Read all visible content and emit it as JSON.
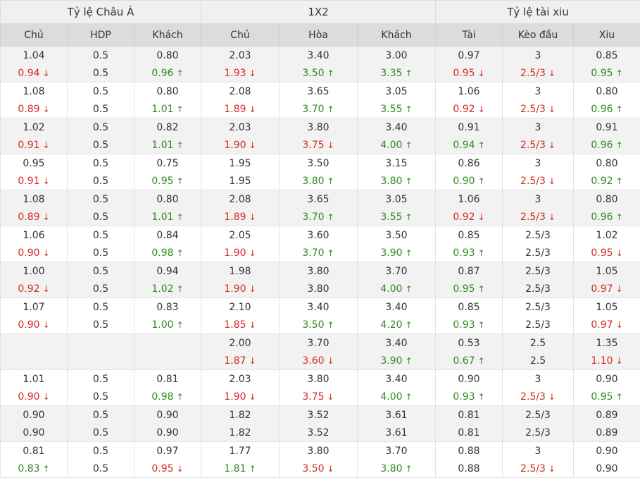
{
  "groups": [
    "Tỷ lệ Châu Á",
    "1X2",
    "Tỷ lệ tài xiu"
  ],
  "columns": [
    "Chủ",
    "HDP",
    "Khách",
    "Chủ",
    "Hòa",
    "Khách",
    "Tài",
    "Kèo đầu",
    "Xiu"
  ],
  "colors": {
    "down": "#d42a1e",
    "up": "#2e8b1e"
  },
  "icons": {
    "up": "arrow-up-icon",
    "down": "arrow-down-icon"
  },
  "rows": [
    [
      [
        "1.04",
        "0.94",
        "d"
      ],
      [
        "0.5",
        "0.5",
        ""
      ],
      [
        "0.80",
        "0.96",
        "u"
      ],
      [
        "2.03",
        "1.93",
        "d"
      ],
      [
        "3.40",
        "3.50",
        "u"
      ],
      [
        "3.00",
        "3.35",
        "u"
      ],
      [
        "0.97",
        "0.95",
        "d"
      ],
      [
        "3",
        "2.5/3",
        "d"
      ],
      [
        "0.85",
        "0.95",
        "u"
      ]
    ],
    [
      [
        "1.08",
        "0.89",
        "d"
      ],
      [
        "0.5",
        "0.5",
        ""
      ],
      [
        "0.80",
        "1.01",
        "u"
      ],
      [
        "2.08",
        "1.89",
        "d"
      ],
      [
        "3.65",
        "3.70",
        "u"
      ],
      [
        "3.05",
        "3.55",
        "u"
      ],
      [
        "1.06",
        "0.92",
        "d"
      ],
      [
        "3",
        "2.5/3",
        "d"
      ],
      [
        "0.80",
        "0.96",
        "u"
      ]
    ],
    [
      [
        "1.02",
        "0.91",
        "d"
      ],
      [
        "0.5",
        "0.5",
        ""
      ],
      [
        "0.82",
        "1.01",
        "u"
      ],
      [
        "2.03",
        "1.90",
        "d"
      ],
      [
        "3.80",
        "3.75",
        "d"
      ],
      [
        "3.40",
        "4.00",
        "u"
      ],
      [
        "0.91",
        "0.94",
        "u"
      ],
      [
        "3",
        "2.5/3",
        "d"
      ],
      [
        "0.91",
        "0.96",
        "u"
      ]
    ],
    [
      [
        "0.95",
        "0.91",
        "d"
      ],
      [
        "0.5",
        "0.5",
        ""
      ],
      [
        "0.75",
        "0.95",
        "u"
      ],
      [
        "1.95",
        "1.95",
        ""
      ],
      [
        "3.50",
        "3.80",
        "u"
      ],
      [
        "3.15",
        "3.80",
        "u"
      ],
      [
        "0.86",
        "0.90",
        "u"
      ],
      [
        "3",
        "2.5/3",
        "d"
      ],
      [
        "0.80",
        "0.92",
        "u"
      ]
    ],
    [
      [
        "1.08",
        "0.89",
        "d"
      ],
      [
        "0.5",
        "0.5",
        ""
      ],
      [
        "0.80",
        "1.01",
        "u"
      ],
      [
        "2.08",
        "1.89",
        "d"
      ],
      [
        "3.65",
        "3.70",
        "u"
      ],
      [
        "3.05",
        "3.55",
        "u"
      ],
      [
        "1.06",
        "0.92",
        "d"
      ],
      [
        "3",
        "2.5/3",
        "d"
      ],
      [
        "0.80",
        "0.96",
        "u"
      ]
    ],
    [
      [
        "1.06",
        "0.90",
        "d"
      ],
      [
        "0.5",
        "0.5",
        ""
      ],
      [
        "0.84",
        "0.98",
        "u"
      ],
      [
        "2.05",
        "1.90",
        "d"
      ],
      [
        "3.60",
        "3.70",
        "u"
      ],
      [
        "3.50",
        "3.90",
        "u"
      ],
      [
        "0.85",
        "0.93",
        "u"
      ],
      [
        "2.5/3",
        "2.5/3",
        ""
      ],
      [
        "1.02",
        "0.95",
        "d"
      ]
    ],
    [
      [
        "1.00",
        "0.92",
        "d"
      ],
      [
        "0.5",
        "0.5",
        ""
      ],
      [
        "0.94",
        "1.02",
        "u"
      ],
      [
        "1.98",
        "1.90",
        "d"
      ],
      [
        "3.80",
        "3.80",
        ""
      ],
      [
        "3.70",
        "4.00",
        "u"
      ],
      [
        "0.87",
        "0.95",
        "u"
      ],
      [
        "2.5/3",
        "2.5/3",
        ""
      ],
      [
        "1.05",
        "0.97",
        "d"
      ]
    ],
    [
      [
        "1.07",
        "0.90",
        "d"
      ],
      [
        "0.5",
        "0.5",
        ""
      ],
      [
        "0.83",
        "1.00",
        "u"
      ],
      [
        "2.10",
        "1.85",
        "d"
      ],
      [
        "3.40",
        "3.50",
        "u"
      ],
      [
        "3.40",
        "4.20",
        "u"
      ],
      [
        "0.85",
        "0.93",
        "u"
      ],
      [
        "2.5/3",
        "2.5/3",
        ""
      ],
      [
        "1.05",
        "0.97",
        "d"
      ]
    ],
    [
      [
        "",
        "",
        ""
      ],
      [
        "",
        "",
        ""
      ],
      [
        "",
        "",
        ""
      ],
      [
        "2.00",
        "1.87",
        "d"
      ],
      [
        "3.70",
        "3.60",
        "d"
      ],
      [
        "3.40",
        "3.90",
        "u"
      ],
      [
        "0.53",
        "0.67",
        "u"
      ],
      [
        "2.5",
        "2.5",
        ""
      ],
      [
        "1.35",
        "1.10",
        "d"
      ]
    ],
    [
      [
        "1.01",
        "0.90",
        "d"
      ],
      [
        "0.5",
        "0.5",
        ""
      ],
      [
        "0.81",
        "0.98",
        "u"
      ],
      [
        "2.03",
        "1.90",
        "d"
      ],
      [
        "3.80",
        "3.75",
        "d"
      ],
      [
        "3.40",
        "4.00",
        "u"
      ],
      [
        "0.90",
        "0.93",
        "u"
      ],
      [
        "3",
        "2.5/3",
        "d"
      ],
      [
        "0.90",
        "0.95",
        "u"
      ]
    ],
    [
      [
        "0.90",
        "0.90",
        ""
      ],
      [
        "0.5",
        "0.5",
        ""
      ],
      [
        "0.90",
        "0.90",
        ""
      ],
      [
        "1.82",
        "1.82",
        ""
      ],
      [
        "3.52",
        "3.52",
        ""
      ],
      [
        "3.61",
        "3.61",
        ""
      ],
      [
        "0.81",
        "0.81",
        ""
      ],
      [
        "2.5/3",
        "2.5/3",
        ""
      ],
      [
        "0.89",
        "0.89",
        ""
      ]
    ],
    [
      [
        "0.81",
        "0.83",
        "u"
      ],
      [
        "0.5",
        "0.5",
        ""
      ],
      [
        "0.97",
        "0.95",
        "d"
      ],
      [
        "1.77",
        "1.81",
        "u"
      ],
      [
        "3.80",
        "3.50",
        "d"
      ],
      [
        "3.70",
        "3.80",
        "u"
      ],
      [
        "0.88",
        "0.88",
        ""
      ],
      [
        "3",
        "2.5/3",
        "d"
      ],
      [
        "0.90",
        "0.90",
        ""
      ]
    ]
  ]
}
